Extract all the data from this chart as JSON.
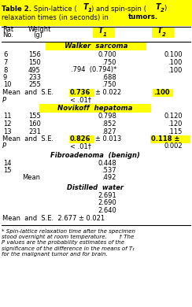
{
  "bg_white": "#FFFFFF",
  "yellow": "#FFFF00",
  "section_walker": "Walker  sarcoma",
  "section_novikoff": "Novikoff  hepatoma",
  "section_fibro": "Fibroadenoma  (benign)",
  "section_water": "Distilled  water",
  "rows_walker": [
    [
      "6",
      "156",
      "0.700",
      "0.100"
    ],
    [
      "7",
      "150",
      ".750",
      ".100"
    ],
    [
      "8",
      "495",
      ".794  (0.794)*",
      ".100"
    ],
    [
      "9",
      "233",
      ".688",
      ""
    ],
    [
      "10",
      "255",
      ".750",
      ""
    ]
  ],
  "rows_novikoff": [
    [
      "11",
      "155",
      "0.798",
      "0.120"
    ],
    [
      "12",
      "160",
      ".852",
      ".120"
    ],
    [
      "13",
      "231",
      ".827",
      ".115"
    ]
  ],
  "rows_fibro": [
    [
      "14",
      "",
      "0.448"
    ],
    [
      "15",
      "",
      ".537"
    ],
    [
      "",
      "Mean",
      ".492"
    ]
  ],
  "rows_water": [
    "2.691",
    "2.690",
    "2.640"
  ],
  "footnote": "* Spin-lattice relaxation time after the specimen\nstood overnight at room temperature.       † The\nP values are the probability estimates of the\nsignificance of the difference in the means of T₁\nfor the malignant tumor and for brain."
}
